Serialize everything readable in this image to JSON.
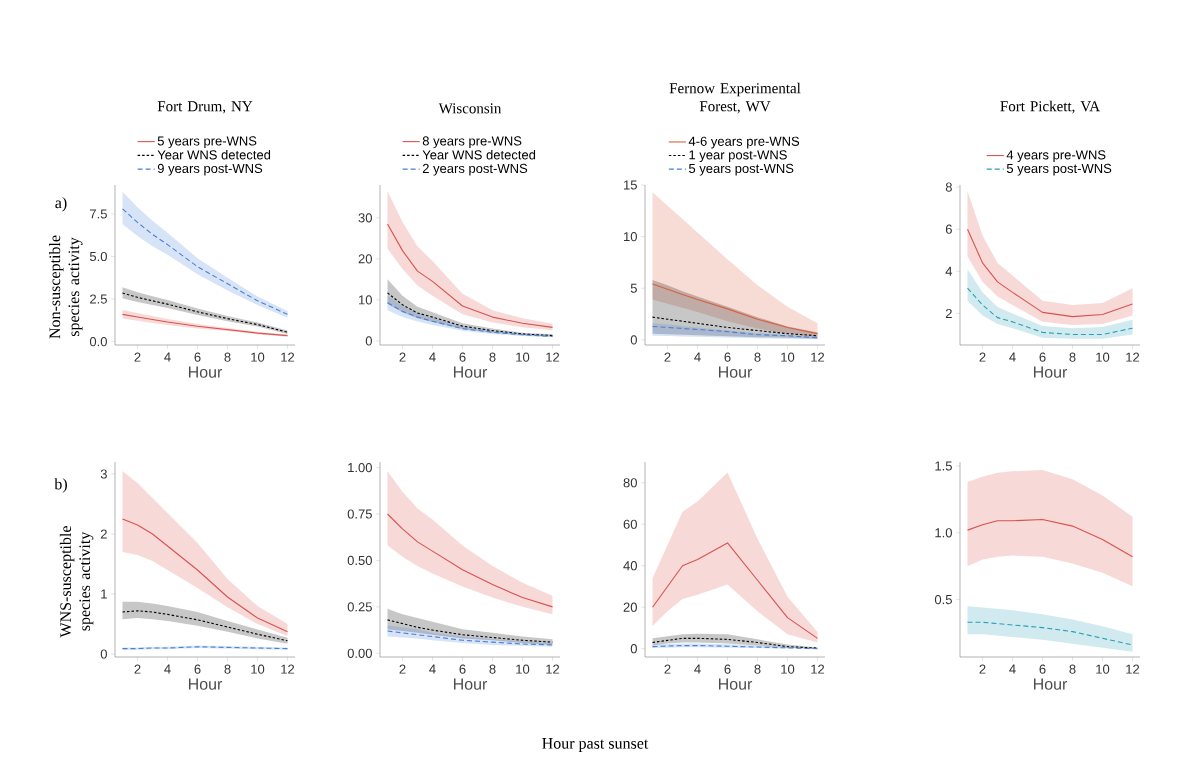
{
  "chart_data": [
    {
      "type": "line",
      "title": "Fort Drum, NY",
      "xlabel": "Hour",
      "ylabel": "Non-susceptible species activity",
      "annotations": [
        "a)"
      ],
      "x": [
        1,
        2,
        3,
        4,
        6,
        8,
        10,
        12
      ],
      "xlim": [
        0.5,
        12.5
      ],
      "ylim": [
        -0.2,
        9.2
      ],
      "xticks": [
        2,
        4,
        6,
        8,
        10,
        12
      ],
      "yticks": [
        {
          "value": 0,
          "label": "0.0"
        },
        2.5,
        {
          "value": 5,
          "label": "5.0"
        },
        7.5
      ],
      "legend": "top",
      "series": [
        {
          "name": "5 years pre-WNS",
          "color": "#d9534f",
          "line_style": "solid",
          "values": [
            1.6,
            1.45,
            1.3,
            1.15,
            0.9,
            0.7,
            0.5,
            0.35
          ],
          "lower": [
            1.35,
            1.22,
            1.1,
            0.98,
            0.77,
            0.62,
            0.43,
            0.28
          ],
          "upper": [
            1.85,
            1.68,
            1.5,
            1.33,
            1.04,
            0.8,
            0.58,
            0.42
          ]
        },
        {
          "name": "Year WNS detected",
          "color": "#000000",
          "line_style": "dotted",
          "values": [
            2.85,
            2.6,
            2.4,
            2.2,
            1.75,
            1.35,
            1.0,
            0.55
          ],
          "lower": [
            2.55,
            2.33,
            2.15,
            1.97,
            1.57,
            1.2,
            0.88,
            0.45
          ],
          "upper": [
            3.2,
            2.9,
            2.67,
            2.45,
            1.95,
            1.5,
            1.12,
            0.65
          ]
        },
        {
          "name": "9 years post-WNS",
          "color": "#4a80d8",
          "line_style": "dashed",
          "values": [
            7.8,
            7.0,
            6.3,
            5.7,
            4.4,
            3.4,
            2.4,
            1.6
          ],
          "lower": [
            6.9,
            6.2,
            5.6,
            5.1,
            3.95,
            3.0,
            2.15,
            1.4
          ],
          "upper": [
            8.8,
            7.9,
            7.1,
            6.4,
            4.9,
            3.75,
            2.65,
            1.8
          ]
        }
      ]
    },
    {
      "type": "line",
      "title": "Wisconsin",
      "xlabel": "Hour",
      "x": [
        1,
        2,
        3,
        4,
        6,
        8,
        10,
        12
      ],
      "xlim": [
        0.5,
        12.5
      ],
      "ylim": [
        -1,
        38
      ],
      "xticks": [
        2,
        4,
        6,
        8,
        10,
        12
      ],
      "yticks": [
        0,
        10,
        20,
        30
      ],
      "legend": "top",
      "series": [
        {
          "name": "8 years pre-WNS",
          "color": "#d9534f",
          "line_style": "solid",
          "values": [
            28.5,
            22,
            17,
            14.5,
            8.5,
            5.8,
            4.3,
            3.3
          ],
          "lower": [
            22.5,
            17.5,
            13.5,
            11,
            6.5,
            4.5,
            3.3,
            2.6
          ],
          "upper": [
            36.5,
            29,
            23,
            19.5,
            11.5,
            7.5,
            5.5,
            4.2
          ]
        },
        {
          "name": "Year WNS detected",
          "color": "#000000",
          "line_style": "dotted",
          "values": [
            11.7,
            8.8,
            6.8,
            5.8,
            3.6,
            2.5,
            1.7,
            1.3
          ],
          "lower": [
            9,
            7,
            5.5,
            4.6,
            2.9,
            2,
            1.4,
            1.0
          ],
          "upper": [
            15,
            11,
            8.3,
            7,
            4.3,
            3,
            2,
            1.6
          ]
        },
        {
          "name": "2 years post-WNS",
          "color": "#4a80d8",
          "line_style": "dashed",
          "values": [
            9.3,
            7.2,
            5.8,
            4.8,
            3.0,
            2.1,
            1.5,
            1.1
          ],
          "lower": [
            7.5,
            5.8,
            4.7,
            3.9,
            2.5,
            1.7,
            1.2,
            0.9
          ],
          "upper": [
            11,
            8.5,
            6.8,
            5.6,
            3.5,
            2.5,
            1.8,
            1.3
          ]
        }
      ]
    },
    {
      "type": "line",
      "title": "Fernow Experimental Forest, WV",
      "xlabel": "Hour",
      "x": [
        1,
        2,
        3,
        4,
        6,
        8,
        10,
        12
      ],
      "xlim": [
        0.5,
        12.5
      ],
      "ylim": [
        -0.5,
        15
      ],
      "xticks": [
        2,
        4,
        6,
        8,
        10,
        12
      ],
      "yticks": [
        0,
        5,
        10,
        15
      ],
      "legend": "top",
      "series": [
        {
          "name": "4-6 years pre-WNS",
          "color": "#d9603f",
          "line_style": "solid",
          "values": [
            5.4,
            4.9,
            4.4,
            3.9,
            3.0,
            2.0,
            1.2,
            0.6
          ],
          "lower": [
            3.9,
            3.5,
            3.1,
            2.7,
            1.8,
            1.1,
            0.6,
            0.25
          ],
          "upper": [
            14.3,
            13,
            11.7,
            10.4,
            7.8,
            5.3,
            3.2,
            1.6
          ]
        },
        {
          "name": "1 year post-WNS",
          "color": "#000000",
          "line_style": "dotted",
          "values": [
            2.2,
            2.0,
            1.8,
            1.6,
            1.2,
            0.9,
            0.6,
            0.4
          ],
          "lower": [
            0.6,
            0.55,
            0.5,
            0.45,
            0.35,
            0.25,
            0.2,
            0.1
          ],
          "upper": [
            5.8,
            5.3,
            4.7,
            4.2,
            3.2,
            2.2,
            1.3,
            0.7
          ]
        },
        {
          "name": "5 years post-WNS",
          "color": "#4a80d8",
          "line_style": "dashed",
          "values": [
            1.3,
            1.2,
            1.1,
            1.0,
            0.8,
            0.5,
            0.4,
            0.2
          ],
          "lower": [
            0.4,
            0.37,
            0.33,
            0.3,
            0.22,
            0.15,
            0.1,
            0.05
          ],
          "upper": [
            1.6,
            1.5,
            1.35,
            1.2,
            0.9,
            0.65,
            0.45,
            0.3
          ]
        }
      ]
    },
    {
      "type": "line",
      "title": "Fort Pickett, VA",
      "xlabel": "Hour",
      "x": [
        1,
        2,
        3,
        4,
        6,
        8,
        10,
        12
      ],
      "xlim": [
        0.5,
        12.5
      ],
      "ylim": [
        0.5,
        8.1
      ],
      "xticks": [
        2,
        4,
        6,
        8,
        10,
        12
      ],
      "yticks": [
        2,
        4,
        6,
        8
      ],
      "legend": "top",
      "series": [
        {
          "name": "4 years pre-WNS",
          "color": "#d9534f",
          "line_style": "solid",
          "values": [
            6.0,
            4.4,
            3.5,
            3.0,
            2.05,
            1.85,
            1.95,
            2.45
          ],
          "lower": [
            4.7,
            3.5,
            2.8,
            2.4,
            1.6,
            1.45,
            1.5,
            1.9
          ],
          "upper": [
            7.8,
            5.7,
            4.4,
            3.8,
            2.6,
            2.4,
            2.5,
            3.2
          ]
        },
        {
          "name": "5 years post-WNS",
          "color": "#2aa0b8",
          "line_style": "dashed",
          "values": [
            3.2,
            2.4,
            1.8,
            1.6,
            1.1,
            1.0,
            1.0,
            1.3
          ],
          "lower": [
            2.6,
            1.9,
            1.5,
            1.3,
            0.85,
            0.8,
            0.8,
            1.0
          ],
          "upper": [
            4.1,
            3.0,
            2.3,
            2.0,
            1.4,
            1.3,
            1.35,
            1.7
          ]
        }
      ]
    },
    {
      "type": "line",
      "xlabel": "Hour",
      "ylabel": "WNS-susceptible species activity",
      "annotations": [
        "b)",
        "Hour past sunset"
      ],
      "x": [
        1,
        2,
        3,
        4,
        6,
        8,
        10,
        12
      ],
      "xlim": [
        0.5,
        12.5
      ],
      "ylim": [
        -0.05,
        3.2
      ],
      "xticks": [
        2,
        4,
        6,
        8,
        10,
        12
      ],
      "yticks": [
        0,
        1,
        2,
        3
      ],
      "series": [
        {
          "color": "#d9534f",
          "line_style": "solid",
          "values": [
            2.25,
            2.15,
            2.0,
            1.8,
            1.4,
            0.95,
            0.6,
            0.37
          ],
          "lower": [
            1.7,
            1.65,
            1.55,
            1.4,
            1.1,
            0.78,
            0.5,
            0.3
          ],
          "upper": [
            3.05,
            2.85,
            2.6,
            2.35,
            1.85,
            1.25,
            0.8,
            0.5
          ]
        },
        {
          "color": "#000000",
          "line_style": "dotted",
          "values": [
            0.7,
            0.72,
            0.7,
            0.66,
            0.57,
            0.45,
            0.33,
            0.22
          ],
          "lower": [
            0.58,
            0.6,
            0.58,
            0.55,
            0.47,
            0.37,
            0.26,
            0.17
          ],
          "upper": [
            0.87,
            0.87,
            0.84,
            0.8,
            0.7,
            0.55,
            0.41,
            0.27
          ]
        },
        {
          "color": "#4a80d8",
          "line_style": "dashed",
          "values": [
            0.09,
            0.09,
            0.1,
            0.1,
            0.12,
            0.11,
            0.1,
            0.09
          ],
          "lower": [
            0.07,
            0.07,
            0.08,
            0.08,
            0.1,
            0.09,
            0.08,
            0.07
          ],
          "upper": [
            0.11,
            0.11,
            0.12,
            0.12,
            0.14,
            0.13,
            0.12,
            0.11
          ]
        }
      ]
    },
    {
      "type": "line",
      "xlabel": "Hour",
      "x": [
        1,
        2,
        3,
        4,
        6,
        8,
        10,
        12
      ],
      "xlim": [
        0.5,
        12.5
      ],
      "ylim": [
        -0.02,
        1.03
      ],
      "xticks": [
        2,
        4,
        6,
        8,
        10,
        12
      ],
      "yticks": [
        {
          "value": 0,
          "label": "0.00"
        },
        {
          "value": 0.25,
          "label": "0.25"
        },
        {
          "value": 0.5,
          "label": "0.50"
        },
        {
          "value": 0.75,
          "label": "0.75"
        },
        {
          "value": 1,
          "label": "1.00"
        }
      ],
      "series": [
        {
          "color": "#d9534f",
          "line_style": "solid",
          "values": [
            0.75,
            0.67,
            0.6,
            0.55,
            0.45,
            0.37,
            0.3,
            0.25
          ],
          "lower": [
            0.58,
            0.52,
            0.47,
            0.43,
            0.36,
            0.3,
            0.25,
            0.21
          ],
          "upper": [
            0.98,
            0.87,
            0.78,
            0.72,
            0.58,
            0.47,
            0.38,
            0.31
          ]
        },
        {
          "color": "#000000",
          "line_style": "dotted",
          "values": [
            0.18,
            0.16,
            0.14,
            0.125,
            0.1,
            0.085,
            0.07,
            0.06
          ],
          "lower": [
            0.13,
            0.12,
            0.11,
            0.1,
            0.08,
            0.07,
            0.055,
            0.045
          ],
          "upper": [
            0.24,
            0.21,
            0.19,
            0.17,
            0.13,
            0.11,
            0.09,
            0.075
          ]
        },
        {
          "color": "#4a80d8",
          "line_style": "dashed",
          "values": [
            0.12,
            0.11,
            0.1,
            0.09,
            0.07,
            0.06,
            0.05,
            0.045
          ],
          "lower": [
            0.09,
            0.085,
            0.08,
            0.07,
            0.055,
            0.045,
            0.04,
            0.035
          ],
          "upper": [
            0.15,
            0.14,
            0.13,
            0.11,
            0.09,
            0.075,
            0.065,
            0.055
          ]
        }
      ]
    },
    {
      "type": "line",
      "xlabel": "Hour",
      "x": [
        1,
        2,
        3,
        4,
        6,
        8,
        10,
        12
      ],
      "xlim": [
        0.5,
        12.5
      ],
      "ylim": [
        -4,
        90
      ],
      "xticks": [
        2,
        4,
        6,
        8,
        10,
        12
      ],
      "yticks": [
        0,
        20,
        40,
        60,
        80
      ],
      "series": [
        {
          "color": "#d9534f",
          "line_style": "solid",
          "values": [
            20,
            30,
            40,
            43,
            51,
            33,
            15,
            5
          ],
          "lower": [
            11,
            18,
            24,
            26,
            31,
            18,
            7,
            3
          ],
          "upper": [
            34,
            50,
            66,
            71,
            85,
            53,
            25,
            8
          ]
        },
        {
          "color": "#000000",
          "line_style": "dotted",
          "values": [
            3,
            4,
            5,
            5,
            4.5,
            3,
            1,
            0.3
          ],
          "lower": [
            1.5,
            2.5,
            3,
            3,
            2.5,
            1.5,
            0.5,
            0
          ],
          "upper": [
            5,
            6,
            7,
            7.2,
            7,
            4.5,
            2,
            0.6
          ]
        },
        {
          "color": "#4a80d8",
          "line_style": "dashed",
          "values": [
            1,
            1.3,
            1.5,
            1.5,
            1.2,
            0.8,
            0.4,
            0
          ],
          "lower": [
            0.3,
            0.5,
            0.7,
            0.7,
            0.5,
            0.3,
            0.1,
            0
          ],
          "upper": [
            2,
            2.3,
            2.5,
            2.5,
            2.2,
            1.5,
            0.8,
            0.5
          ]
        }
      ]
    },
    {
      "type": "line",
      "xlabel": "Hour",
      "x": [
        1,
        2,
        3,
        4,
        6,
        8,
        10,
        12
      ],
      "xlim": [
        0.5,
        12.5
      ],
      "ylim": [
        0.07,
        1.53
      ],
      "xticks": [
        2,
        4,
        6,
        8,
        10,
        12
      ],
      "yticks": [
        0.5,
        {
          "value": 1,
          "label": "1.0"
        },
        1.5
      ],
      "series": [
        {
          "color": "#d9534f",
          "line_style": "solid",
          "values": [
            1.02,
            1.06,
            1.09,
            1.09,
            1.1,
            1.05,
            0.95,
            0.82
          ],
          "lower": [
            0.75,
            0.8,
            0.82,
            0.83,
            0.82,
            0.77,
            0.7,
            0.6
          ],
          "upper": [
            1.38,
            1.42,
            1.45,
            1.46,
            1.47,
            1.4,
            1.28,
            1.12
          ]
        },
        {
          "color": "#2aa0b8",
          "line_style": "dashed",
          "values": [
            0.33,
            0.33,
            0.32,
            0.31,
            0.29,
            0.26,
            0.21,
            0.16
          ],
          "lower": [
            0.24,
            0.24,
            0.23,
            0.22,
            0.2,
            0.17,
            0.14,
            0.11
          ],
          "upper": [
            0.45,
            0.44,
            0.43,
            0.42,
            0.39,
            0.35,
            0.3,
            0.24
          ]
        }
      ]
    }
  ]
}
